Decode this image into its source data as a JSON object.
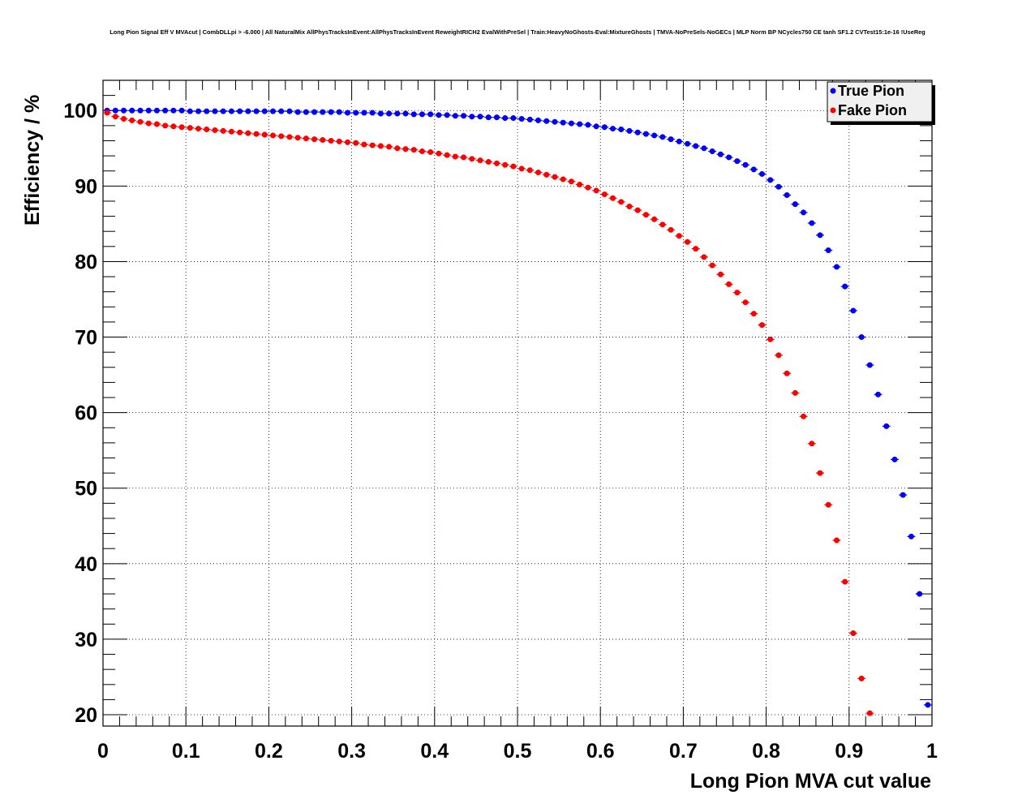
{
  "chart_data": {
    "type": "scatter",
    "title": "Long Pion Signal Eff V MVAcut | CombDLLpi > -6.000 | All NaturalMix AllPhysTracksInEvent:AllPhysTracksInEvent ReweightRICH2 EvalWithPreSel | Train:HeavyNoGhosts-Eval:MixtureGhosts | TMVA-NoPreSels-NoGECs | MLP Norm BP NCycles750 CE tanh SF1.2 CVTest15:1e-16 !UseReg",
    "xlabel": "Long Pion MVA cut value",
    "ylabel": "Efficiency / %",
    "xlim": [
      0,
      1
    ],
    "ylim": [
      18.5,
      104
    ],
    "grid": true,
    "legend_position": "top-right",
    "x_ticks": [
      0,
      0.1,
      0.2,
      0.3,
      0.4,
      0.5,
      0.6,
      0.7,
      0.8,
      0.9,
      1
    ],
    "x_tick_labels": [
      "0",
      "0.1",
      "0.2",
      "0.3",
      "0.4",
      "0.5",
      "0.6",
      "0.7",
      "0.8",
      "0.9",
      "1"
    ],
    "y_ticks": [
      20,
      30,
      40,
      50,
      60,
      70,
      80,
      90,
      100
    ],
    "y_tick_labels": [
      "20",
      "30",
      "40",
      "50",
      "60",
      "70",
      "80",
      "90",
      "100"
    ],
    "series": [
      {
        "name": "True Pion",
        "color": "#0000ff",
        "points": [
          [
            0.005,
            100.0
          ],
          [
            0.015,
            100.0
          ],
          [
            0.025,
            100.0
          ],
          [
            0.035,
            100.0
          ],
          [
            0.045,
            100.0
          ],
          [
            0.055,
            100.0
          ],
          [
            0.065,
            100.0
          ],
          [
            0.075,
            100.0
          ],
          [
            0.085,
            100.0
          ],
          [
            0.095,
            100.0
          ],
          [
            0.105,
            99.9
          ],
          [
            0.115,
            99.9
          ],
          [
            0.125,
            99.9
          ],
          [
            0.135,
            99.9
          ],
          [
            0.145,
            99.9
          ],
          [
            0.155,
            99.9
          ],
          [
            0.165,
            99.9
          ],
          [
            0.175,
            99.9
          ],
          [
            0.185,
            99.9
          ],
          [
            0.195,
            99.9
          ],
          [
            0.205,
            99.9
          ],
          [
            0.215,
            99.9
          ],
          [
            0.225,
            99.9
          ],
          [
            0.235,
            99.8
          ],
          [
            0.245,
            99.8
          ],
          [
            0.255,
            99.8
          ],
          [
            0.265,
            99.8
          ],
          [
            0.275,
            99.8
          ],
          [
            0.285,
            99.8
          ],
          [
            0.295,
            99.7
          ],
          [
            0.305,
            99.7
          ],
          [
            0.315,
            99.7
          ],
          [
            0.325,
            99.7
          ],
          [
            0.335,
            99.6
          ],
          [
            0.345,
            99.6
          ],
          [
            0.355,
            99.6
          ],
          [
            0.365,
            99.6
          ],
          [
            0.375,
            99.5
          ],
          [
            0.385,
            99.5
          ],
          [
            0.395,
            99.5
          ],
          [
            0.405,
            99.4
          ],
          [
            0.415,
            99.4
          ],
          [
            0.425,
            99.3
          ],
          [
            0.435,
            99.3
          ],
          [
            0.445,
            99.2
          ],
          [
            0.455,
            99.2
          ],
          [
            0.465,
            99.1
          ],
          [
            0.475,
            99.1
          ],
          [
            0.485,
            99.0
          ],
          [
            0.495,
            99.0
          ],
          [
            0.505,
            98.9
          ],
          [
            0.515,
            98.8
          ],
          [
            0.525,
            98.7
          ],
          [
            0.535,
            98.6
          ],
          [
            0.545,
            98.5
          ],
          [
            0.555,
            98.4
          ],
          [
            0.565,
            98.3
          ],
          [
            0.575,
            98.2
          ],
          [
            0.585,
            98.1
          ],
          [
            0.595,
            97.9
          ],
          [
            0.605,
            97.8
          ],
          [
            0.615,
            97.6
          ],
          [
            0.625,
            97.5
          ],
          [
            0.635,
            97.3
          ],
          [
            0.645,
            97.1
          ],
          [
            0.655,
            96.9
          ],
          [
            0.665,
            96.7
          ],
          [
            0.675,
            96.5
          ],
          [
            0.685,
            96.2
          ],
          [
            0.695,
            95.9
          ],
          [
            0.705,
            95.6
          ],
          [
            0.715,
            95.3
          ],
          [
            0.725,
            95.0
          ],
          [
            0.735,
            94.6
          ],
          [
            0.745,
            94.2
          ],
          [
            0.755,
            93.8
          ],
          [
            0.765,
            93.3
          ],
          [
            0.775,
            92.8
          ],
          [
            0.785,
            92.2
          ],
          [
            0.795,
            91.6
          ],
          [
            0.805,
            90.8
          ],
          [
            0.815,
            89.9
          ],
          [
            0.825,
            88.8
          ],
          [
            0.835,
            87.6
          ],
          [
            0.845,
            86.5
          ],
          [
            0.855,
            85.1
          ],
          [
            0.865,
            83.5
          ],
          [
            0.875,
            81.5
          ],
          [
            0.885,
            79.3
          ],
          [
            0.895,
            76.7
          ],
          [
            0.905,
            73.5
          ],
          [
            0.915,
            70.0
          ],
          [
            0.925,
            66.3
          ],
          [
            0.935,
            62.4
          ],
          [
            0.945,
            58.2
          ],
          [
            0.955,
            53.8
          ],
          [
            0.965,
            49.1
          ],
          [
            0.975,
            43.6
          ],
          [
            0.985,
            36.0
          ],
          [
            0.995,
            21.3
          ]
        ]
      },
      {
        "name": "Fake Pion",
        "color": "#ff0000",
        "points": [
          [
            0.005,
            99.7
          ],
          [
            0.015,
            99.2
          ],
          [
            0.025,
            98.9
          ],
          [
            0.035,
            98.7
          ],
          [
            0.045,
            98.5
          ],
          [
            0.055,
            98.3
          ],
          [
            0.065,
            98.2
          ],
          [
            0.075,
            98.0
          ],
          [
            0.085,
            97.9
          ],
          [
            0.095,
            97.8
          ],
          [
            0.105,
            97.7
          ],
          [
            0.115,
            97.6
          ],
          [
            0.125,
            97.5
          ],
          [
            0.135,
            97.4
          ],
          [
            0.145,
            97.3
          ],
          [
            0.155,
            97.2
          ],
          [
            0.165,
            97.1
          ],
          [
            0.175,
            97.0
          ],
          [
            0.185,
            96.9
          ],
          [
            0.195,
            96.8
          ],
          [
            0.205,
            96.7
          ],
          [
            0.215,
            96.6
          ],
          [
            0.225,
            96.5
          ],
          [
            0.235,
            96.4
          ],
          [
            0.245,
            96.3
          ],
          [
            0.255,
            96.2
          ],
          [
            0.265,
            96.1
          ],
          [
            0.275,
            96.0
          ],
          [
            0.285,
            95.9
          ],
          [
            0.295,
            95.8
          ],
          [
            0.305,
            95.7
          ],
          [
            0.315,
            95.5
          ],
          [
            0.325,
            95.4
          ],
          [
            0.335,
            95.3
          ],
          [
            0.345,
            95.2
          ],
          [
            0.355,
            95.0
          ],
          [
            0.365,
            94.9
          ],
          [
            0.375,
            94.8
          ],
          [
            0.385,
            94.6
          ],
          [
            0.395,
            94.5
          ],
          [
            0.405,
            94.3
          ],
          [
            0.415,
            94.1
          ],
          [
            0.425,
            93.9
          ],
          [
            0.435,
            93.8
          ],
          [
            0.445,
            93.6
          ],
          [
            0.455,
            93.4
          ],
          [
            0.465,
            93.2
          ],
          [
            0.475,
            93.0
          ],
          [
            0.485,
            92.8
          ],
          [
            0.495,
            92.6
          ],
          [
            0.505,
            92.3
          ],
          [
            0.515,
            92.1
          ],
          [
            0.525,
            91.8
          ],
          [
            0.535,
            91.5
          ],
          [
            0.545,
            91.2
          ],
          [
            0.555,
            90.9
          ],
          [
            0.565,
            90.6
          ],
          [
            0.575,
            90.2
          ],
          [
            0.585,
            89.8
          ],
          [
            0.595,
            89.4
          ],
          [
            0.605,
            88.9
          ],
          [
            0.615,
            88.4
          ],
          [
            0.625,
            87.9
          ],
          [
            0.635,
            87.3
          ],
          [
            0.645,
            86.8
          ],
          [
            0.655,
            86.2
          ],
          [
            0.665,
            85.6
          ],
          [
            0.675,
            84.9
          ],
          [
            0.685,
            84.2
          ],
          [
            0.695,
            83.4
          ],
          [
            0.705,
            82.6
          ],
          [
            0.715,
            81.7
          ],
          [
            0.725,
            80.6
          ],
          [
            0.735,
            79.5
          ],
          [
            0.745,
            78.3
          ],
          [
            0.755,
            77.0
          ],
          [
            0.765,
            75.9
          ],
          [
            0.775,
            74.6
          ],
          [
            0.785,
            73.1
          ],
          [
            0.795,
            71.6
          ],
          [
            0.805,
            69.7
          ],
          [
            0.815,
            67.6
          ],
          [
            0.825,
            65.2
          ],
          [
            0.835,
            62.6
          ],
          [
            0.845,
            59.5
          ],
          [
            0.855,
            55.9
          ],
          [
            0.865,
            52.0
          ],
          [
            0.875,
            47.8
          ],
          [
            0.885,
            43.1
          ],
          [
            0.895,
            37.6
          ],
          [
            0.905,
            30.8
          ],
          [
            0.915,
            24.8
          ],
          [
            0.925,
            20.2
          ]
        ]
      }
    ]
  }
}
